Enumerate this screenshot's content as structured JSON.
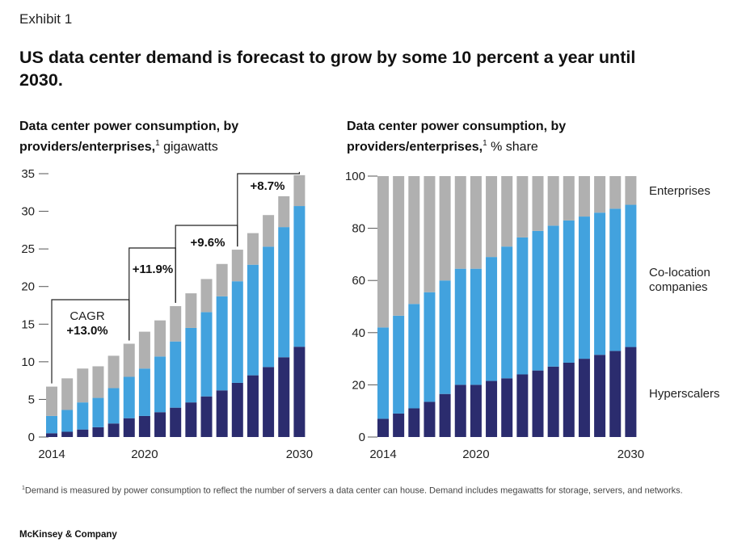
{
  "exhibit_label": "Exhibit 1",
  "headline": "US data center demand is forecast to grow by some 10 percent a year until 2030.",
  "footnote": "Demand is measured by power consumption to reflect the number of servers a data center can house. Demand includes megawatts for storage, servers, and networks.",
  "footnote_marker": "1",
  "brand": "McKinsey & Company",
  "colors": {
    "hyperscalers": "#2b2c6e",
    "colocation": "#42a2de",
    "enterprises": "#b0b0b0",
    "axis": "#555555"
  },
  "chart_data": [
    {
      "type": "bar",
      "stacked": true,
      "title_bold": "Data center power consumption, by providers/enterprises,",
      "title_marker": "1",
      "title_unit": "gigawatts",
      "ylim": [
        0,
        35
      ],
      "yticks": [
        0,
        5,
        10,
        15,
        20,
        25,
        30,
        35
      ],
      "categories": [
        "2014",
        "2015",
        "2016",
        "2017",
        "2018",
        "2019",
        "2020",
        "2021",
        "2022",
        "2023",
        "2024",
        "2025",
        "2026",
        "2027",
        "2028",
        "2029",
        "2030"
      ],
      "x_tick_labels": [
        "2014",
        "2020",
        "2030"
      ],
      "series": [
        {
          "name": "Hyperscalers",
          "values": [
            0.5,
            0.7,
            1.0,
            1.3,
            1.8,
            2.5,
            2.8,
            3.3,
            3.9,
            4.6,
            5.4,
            6.2,
            7.2,
            8.2,
            9.3,
            10.6,
            12.0
          ]
        },
        {
          "name": "Co-location companies",
          "values": [
            2.3,
            2.9,
            3.6,
            3.9,
            4.7,
            5.5,
            6.3,
            7.4,
            8.8,
            9.9,
            11.2,
            12.5,
            13.5,
            14.7,
            16.0,
            17.3,
            18.7
          ]
        },
        {
          "name": "Enterprises",
          "values": [
            3.9,
            4.2,
            4.5,
            4.2,
            4.3,
            4.4,
            4.9,
            4.8,
            4.7,
            4.6,
            4.4,
            4.3,
            4.2,
            4.2,
            4.2,
            4.1,
            4.1
          ]
        }
      ],
      "annotations": [
        {
          "label": "CAGR",
          "value": "+13.0%"
        },
        {
          "label": "",
          "value": "+11.9%"
        },
        {
          "label": "",
          "value": "+9.6%"
        },
        {
          "label": "",
          "value": "+8.7%"
        }
      ]
    },
    {
      "type": "bar",
      "stacked": true,
      "percent": true,
      "title_bold": "Data center power consumption, by providers/enterprises,",
      "title_marker": "1",
      "title_unit": "% share",
      "ylim": [
        0,
        100
      ],
      "yticks": [
        0,
        20,
        40,
        60,
        80,
        100
      ],
      "categories": [
        "2014",
        "2015",
        "2016",
        "2017",
        "2018",
        "2019",
        "2020",
        "2021",
        "2022",
        "2023",
        "2024",
        "2025",
        "2026",
        "2027",
        "2028",
        "2029",
        "2030"
      ],
      "x_tick_labels": [
        "2014",
        "2020",
        "2030"
      ],
      "series": [
        {
          "name": "Hyperscalers",
          "values": [
            7,
            9,
            11,
            13.5,
            16.5,
            20,
            20,
            21.5,
            22.5,
            24,
            25.5,
            27,
            28.5,
            30,
            31.5,
            33,
            34.5
          ]
        },
        {
          "name": "Co-location companies",
          "values": [
            35,
            37.5,
            40,
            42,
            43.5,
            44.5,
            44.5,
            47.5,
            50.5,
            52.5,
            53.5,
            54,
            54.5,
            54.5,
            54.5,
            54.5,
            54.5
          ]
        },
        {
          "name": "Enterprises",
          "values": [
            58,
            53.5,
            49,
            44.5,
            40,
            35.5,
            35.5,
            31,
            27,
            23.5,
            21,
            19,
            17,
            15.5,
            14,
            12.5,
            11
          ]
        }
      ],
      "legend": [
        "Enterprises",
        "Co-location companies",
        "Hyperscalers"
      ]
    }
  ]
}
